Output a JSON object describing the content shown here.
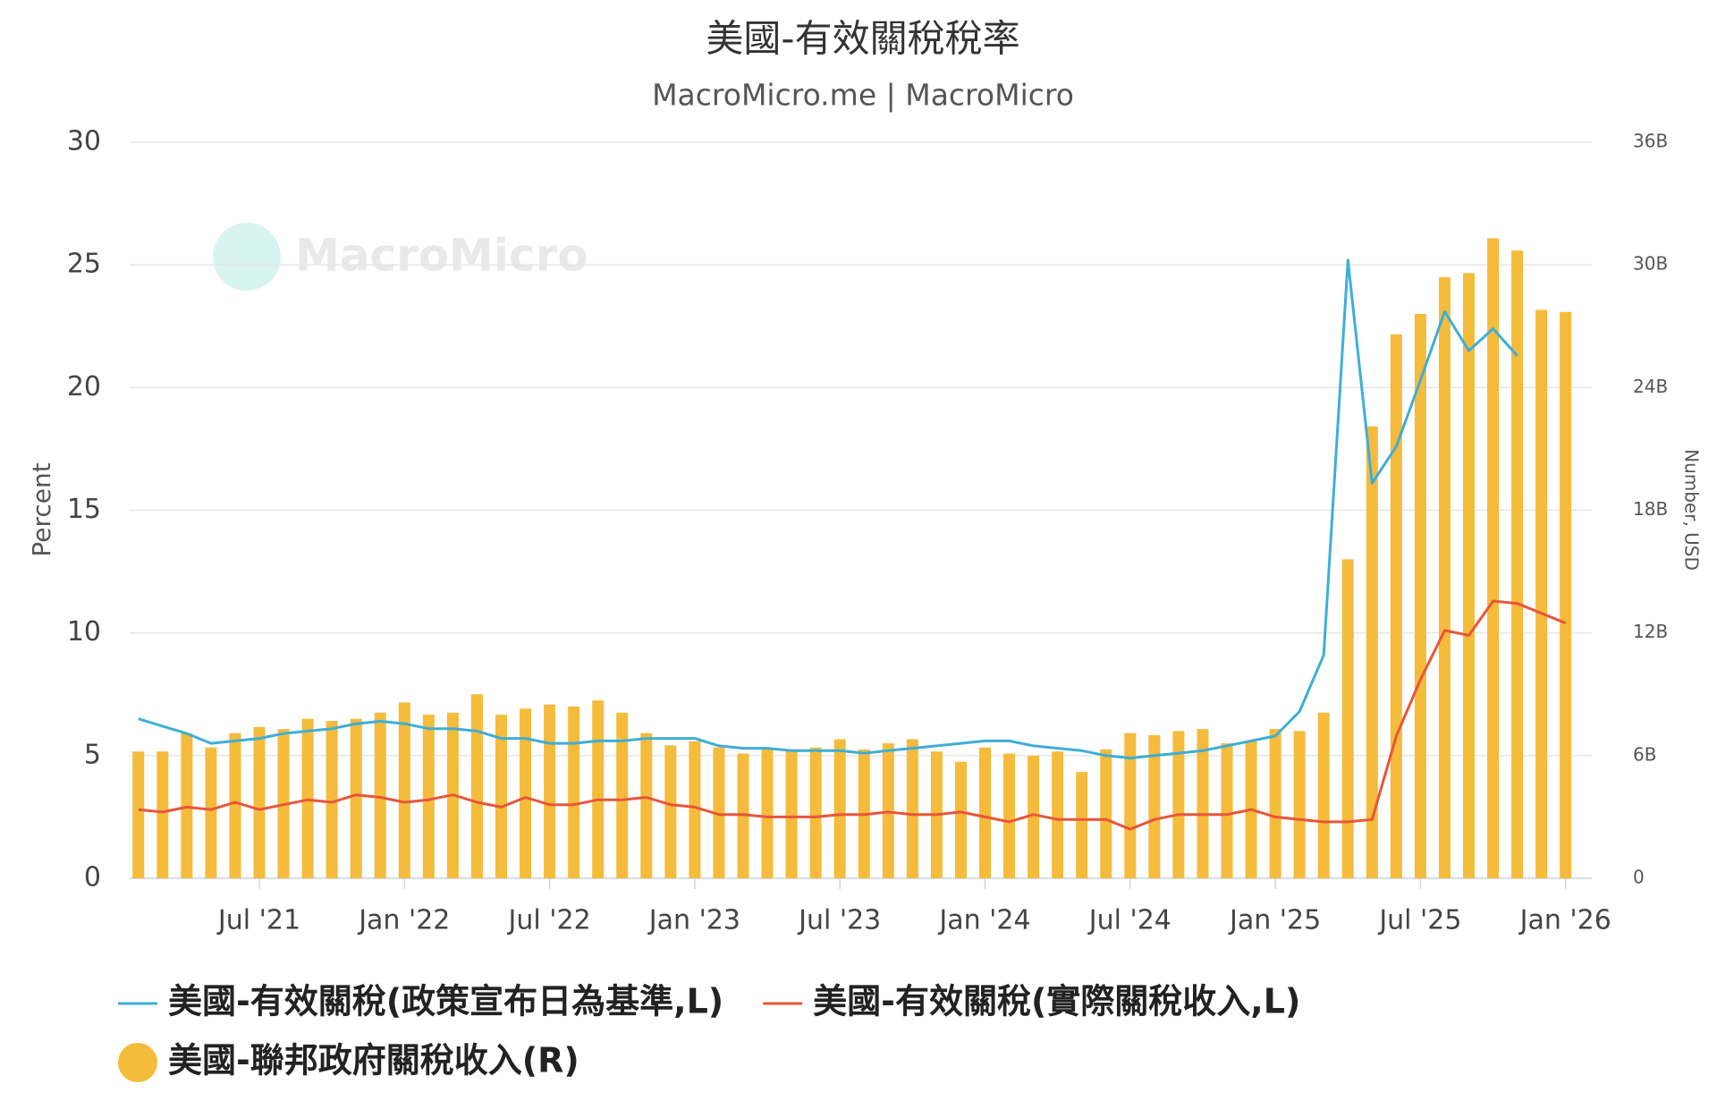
{
  "chart_data": {
    "type": "combo",
    "title": "美國-有效關稅稅率",
    "subtitle": "MacroMicro.me | MacroMicro",
    "watermark": "MacroMicro",
    "y_label": "Percent",
    "y2_label": "Number, USD",
    "x": [
      "2021-02",
      "2021-03",
      "2021-04",
      "2021-05",
      "2021-06",
      "2021-07",
      "2021-08",
      "2021-09",
      "2021-10",
      "2021-11",
      "2021-12",
      "2022-01",
      "2022-02",
      "2022-03",
      "2022-04",
      "2022-05",
      "2022-06",
      "2022-07",
      "2022-08",
      "2022-09",
      "2022-10",
      "2022-11",
      "2022-12",
      "2023-01",
      "2023-02",
      "2023-03",
      "2023-04",
      "2023-05",
      "2023-06",
      "2023-07",
      "2023-08",
      "2023-09",
      "2023-10",
      "2023-11",
      "2023-12",
      "2024-01",
      "2024-02",
      "2024-03",
      "2024-04",
      "2024-05",
      "2024-06",
      "2024-07",
      "2024-08",
      "2024-09",
      "2024-10",
      "2024-11",
      "2024-12",
      "2025-01",
      "2025-02",
      "2025-03",
      "2025-04",
      "2025-05",
      "2025-06",
      "2025-07",
      "2025-08",
      "2025-09",
      "2025-10",
      "2025-11",
      "2025-12",
      "2026-01"
    ],
    "xticks": [
      {
        "value": "2021-07",
        "label": "Jul '21"
      },
      {
        "value": "2022-01",
        "label": "Jan '22"
      },
      {
        "value": "2022-07",
        "label": "Jul '22"
      },
      {
        "value": "2023-01",
        "label": "Jan '23"
      },
      {
        "value": "2023-07",
        "label": "Jul '23"
      },
      {
        "value": "2024-01",
        "label": "Jan '24"
      },
      {
        "value": "2024-07",
        "label": "Jul '24"
      },
      {
        "value": "2025-01",
        "label": "Jan '25"
      },
      {
        "value": "2025-07",
        "label": "Jul '25"
      },
      {
        "value": "2026-01",
        "label": "Jan '26"
      }
    ],
    "ylim": [
      0,
      30
    ],
    "yticks": [
      0,
      5,
      10,
      15,
      20,
      25,
      30
    ],
    "y2lim": [
      0,
      36000000000
    ],
    "y2ticks": [
      {
        "value": 0,
        "label": "0"
      },
      {
        "value": 6000000000,
        "label": "6B"
      },
      {
        "value": 12000000000,
        "label": "12B"
      },
      {
        "value": 18000000000,
        "label": "18B"
      },
      {
        "value": 24000000000,
        "label": "24B"
      },
      {
        "value": 30000000000,
        "label": "30B"
      },
      {
        "value": 36000000000,
        "label": "36B"
      }
    ],
    "grid": true,
    "series": [
      {
        "name": "美國-有效關稅(政策宣布日為基準,L)",
        "type": "line",
        "axis": "y",
        "color": "#3eaed6",
        "values": [
          6.5,
          6.2,
          5.9,
          5.5,
          5.6,
          5.7,
          5.9,
          6.0,
          6.1,
          6.3,
          6.4,
          6.3,
          6.1,
          6.1,
          6.0,
          5.7,
          5.7,
          5.5,
          5.5,
          5.6,
          5.6,
          5.7,
          5.7,
          5.7,
          5.4,
          5.3,
          5.3,
          5.2,
          5.2,
          5.2,
          5.1,
          5.2,
          5.3,
          5.4,
          5.5,
          5.6,
          5.6,
          5.4,
          5.3,
          5.2,
          5.0,
          4.9,
          5.0,
          5.1,
          5.2,
          5.4,
          5.6,
          5.8,
          6.8,
          9.1,
          25.2,
          16.1,
          17.6,
          20.3,
          23.1,
          21.5,
          22.4,
          21.3,
          null,
          null
        ]
      },
      {
        "name": "美國-有效關稅(實際關稅收入,L)",
        "type": "line",
        "axis": "y",
        "color": "#e8563a",
        "values": [
          2.8,
          2.7,
          2.9,
          2.8,
          3.1,
          2.8,
          3.0,
          3.2,
          3.1,
          3.4,
          3.3,
          3.1,
          3.2,
          3.4,
          3.1,
          2.9,
          3.3,
          3.0,
          3.0,
          3.2,
          3.2,
          3.3,
          3.0,
          2.9,
          2.6,
          2.6,
          2.5,
          2.5,
          2.5,
          2.6,
          2.6,
          2.7,
          2.6,
          2.6,
          2.7,
          2.5,
          2.3,
          2.6,
          2.4,
          2.4,
          2.4,
          2.0,
          2.4,
          2.6,
          2.6,
          2.6,
          2.8,
          2.5,
          2.4,
          2.3,
          2.3,
          2.4,
          5.8,
          8.1,
          10.1,
          9.9,
          11.3,
          11.2,
          10.8,
          10.4
        ]
      },
      {
        "name": "美國-聯邦政府關稅收入(R)",
        "type": "bar",
        "axis": "y2",
        "color": "#f5bb3b",
        "values": [
          6200000000.0,
          6200000000.0,
          7100000000.0,
          6400000000.0,
          7100000000.0,
          7400000000.0,
          7300000000.0,
          7800000000.0,
          7700000000.0,
          7800000000.0,
          8100000000.0,
          8600000000.0,
          8000000000.0,
          8100000000.0,
          9000000000.0,
          8000000000.0,
          8300000000.0,
          8500000000.0,
          8400000000.0,
          8700000000.0,
          8100000000.0,
          7100000000.0,
          6500000000.0,
          6700000000.0,
          6400000000.0,
          6100000000.0,
          6300000000.0,
          6300000000.0,
          6400000000.0,
          6800000000.0,
          6300000000.0,
          6600000000.0,
          6800000000.0,
          6200000000.0,
          5700000000.0,
          6400000000.0,
          6100000000.0,
          6000000000.0,
          6200000000.0,
          5200000000.0,
          6300000000.0,
          7100000000.0,
          7000000000.0,
          7200000000.0,
          7300000000.0,
          6600000000.0,
          6700000000.0,
          7300000000.0,
          7200000000.0,
          8100000000.0,
          15600000000.0,
          22100000000.0,
          26600000000.0,
          27600000000.0,
          29400000000.0,
          29600000000.0,
          31300000000.0,
          30700000000.0,
          27800000000.0,
          27700000000.0
        ]
      }
    ]
  }
}
